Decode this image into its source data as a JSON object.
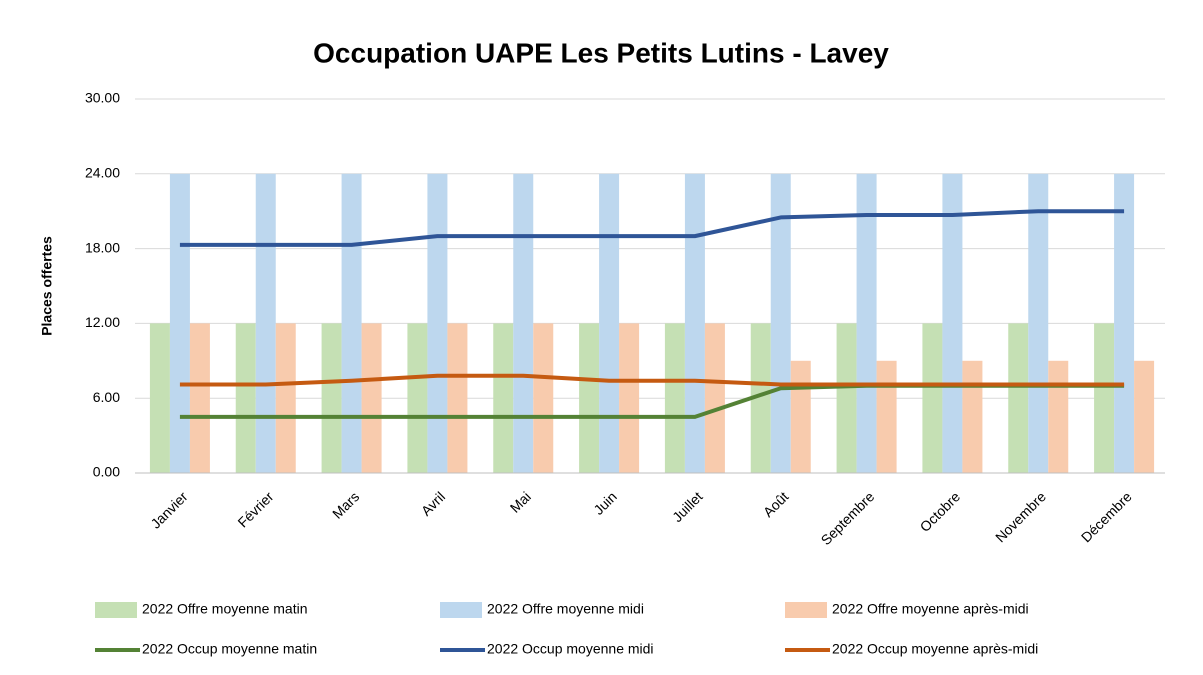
{
  "chart_data": {
    "type": "combo",
    "title": "Occupation UAPE Les Petits Lutins - Lavey",
    "y_label": "Places offertes",
    "categories": [
      "Janvier",
      "Février",
      "Mars",
      "Avril",
      "Mai",
      "Juin",
      "Juillet",
      "Août",
      "Septembre",
      "Octobre",
      "Novembre",
      "Décembre"
    ],
    "series": [
      {
        "name": "2022 Offre moyenne matin",
        "type": "bar",
        "color": "#c5e0b4",
        "values": [
          12,
          12,
          12,
          12,
          12,
          12,
          12,
          12,
          12,
          12,
          12,
          12
        ]
      },
      {
        "name": "2022 Offre moyenne midi",
        "type": "bar",
        "color": "#bdd7ee",
        "values": [
          24,
          24,
          24,
          24,
          24,
          24,
          24,
          24,
          24,
          24,
          24,
          24
        ]
      },
      {
        "name": "2022 Offre moyenne après-midi",
        "type": "bar",
        "color": "#f8cbad",
        "values": [
          12,
          12,
          12,
          12,
          12,
          12,
          12,
          9,
          9,
          9,
          9,
          9
        ]
      },
      {
        "name": "2022 Occup moyenne matin",
        "type": "line",
        "color": "#548235",
        "values": [
          4.5,
          4.5,
          4.5,
          4.5,
          4.5,
          4.5,
          4.5,
          6.8,
          7,
          7,
          7,
          7
        ]
      },
      {
        "name": "2022 Occup moyenne midi",
        "type": "line",
        "color": "#2f5597",
        "values": [
          18.3,
          18.3,
          18.3,
          19,
          19,
          19,
          19,
          20.5,
          20.7,
          20.7,
          21,
          21
        ]
      },
      {
        "name": "2022 Occup moyenne après-midi",
        "type": "line",
        "color": "#c55a11",
        "values": [
          7.1,
          7.1,
          7.4,
          7.8,
          7.8,
          7.4,
          7.4,
          7.1,
          7.1,
          7.1,
          7.1,
          7.1
        ]
      }
    ],
    "ylim": [
      0,
      30
    ],
    "yticks": [
      {
        "value": 0,
        "label": "0.00"
      },
      {
        "value": 6,
        "label": "6.00"
      },
      {
        "value": 12,
        "label": "12.00"
      },
      {
        "value": 18,
        "label": "18.00"
      },
      {
        "value": 24,
        "label": "24.00"
      },
      {
        "value": 30,
        "label": "30.00"
      }
    ],
    "grid": true
  }
}
